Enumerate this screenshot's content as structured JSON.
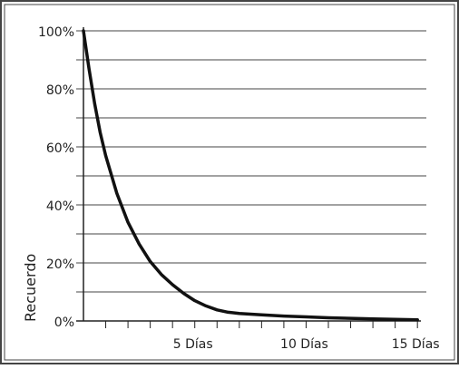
{
  "chart_data": {
    "type": "line",
    "title": "",
    "ylabel": "Recuerdo",
    "xlabel": "",
    "x_unit_label": "Días",
    "xlim": [
      0,
      15.4
    ],
    "ylim": [
      0,
      100
    ],
    "y_ticks": [
      0,
      20,
      40,
      60,
      80,
      100
    ],
    "y_tick_labels": [
      "0%",
      "20%",
      "40%",
      "60%",
      "80%",
      "100%"
    ],
    "x_ticks": [
      5,
      10,
      15
    ],
    "x_tick_labels": [
      "5 Días",
      "10 Días",
      "15 Días"
    ],
    "x_minor_ticks": [
      1,
      2,
      3,
      4,
      5,
      6,
      7,
      8,
      9,
      10,
      11,
      12,
      13,
      14,
      15
    ],
    "y_gridlines": [
      10,
      20,
      30,
      40,
      50,
      60,
      70,
      80,
      90,
      100
    ],
    "grid": true,
    "legend": "none",
    "series": [
      {
        "color": "#111111",
        "x": [
          0,
          0.25,
          0.5,
          0.75,
          1,
          1.5,
          2,
          2.5,
          3,
          3.5,
          4,
          4.5,
          5,
          5.5,
          6,
          6.5,
          7,
          8,
          9,
          10,
          11,
          12,
          13,
          14,
          15
        ],
        "values": [
          100,
          87,
          75,
          65,
          57,
          44,
          34,
          26.5,
          20.5,
          16,
          12.5,
          9.5,
          7,
          5.2,
          3.8,
          3,
          2.6,
          2.1,
          1.7,
          1.4,
          1.1,
          0.9,
          0.7,
          0.55,
          0.4
        ]
      }
    ]
  }
}
